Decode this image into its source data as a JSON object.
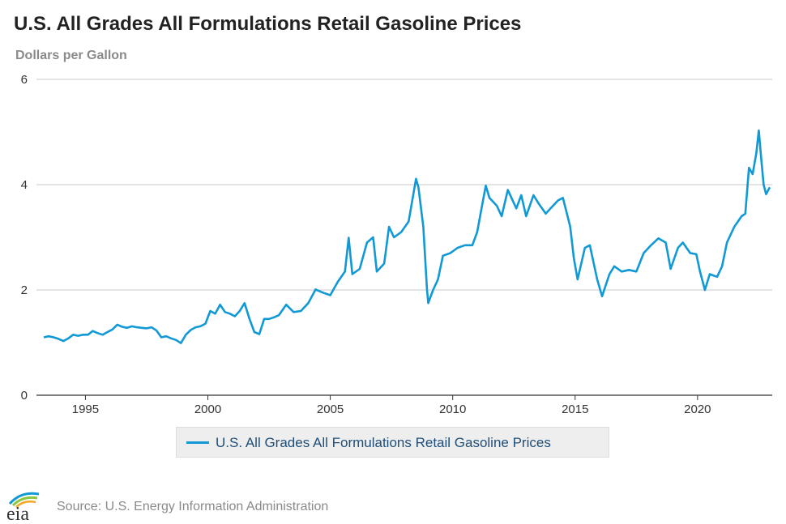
{
  "title": "U.S. All Grades All Formulations Retail Gasoline Prices",
  "unit_label": "Dollars per Gallon",
  "legend": {
    "label": "U.S. All Grades All Formulations Retail Gasoline Prices"
  },
  "footer": {
    "logo_text": "eia",
    "source": "Source: U.S. Energy Information Administration"
  },
  "colors": {
    "series": "#1199d6",
    "grid": "#c8c8c8",
    "axis": "#333333"
  },
  "chart_data": {
    "type": "line",
    "title": "U.S. All Grades All Formulations Retail Gasoline Prices",
    "ylabel": "Dollars per Gallon",
    "xlabel": "",
    "xlim": [
      1993.0,
      2023.05
    ],
    "ylim": [
      0,
      6
    ],
    "yticks": [
      0,
      2,
      4,
      6
    ],
    "xticks": [
      1995,
      2000,
      2005,
      2010,
      2015,
      2020
    ],
    "grid": "horizontal",
    "legend_position": "bottom",
    "series": [
      {
        "name": "U.S. All Grades All Formulations Retail Gasoline Prices",
        "x": [
          1993.3,
          1993.5,
          1993.7,
          1993.9,
          1994.1,
          1994.3,
          1994.5,
          1994.7,
          1994.9,
          1995.1,
          1995.3,
          1995.5,
          1995.7,
          1995.9,
          1996.1,
          1996.3,
          1996.5,
          1996.7,
          1996.9,
          1997.1,
          1997.3,
          1997.5,
          1997.7,
          1997.9,
          1998.1,
          1998.3,
          1998.5,
          1998.7,
          1998.9,
          1999.1,
          1999.3,
          1999.5,
          1999.7,
          1999.9,
          2000.1,
          2000.3,
          2000.5,
          2000.7,
          2000.9,
          2001.1,
          2001.3,
          2001.5,
          2001.7,
          2001.9,
          2002.1,
          2002.3,
          2002.5,
          2002.7,
          2002.9,
          2003.2,
          2003.5,
          2003.8,
          2004.1,
          2004.4,
          2004.7,
          2005.0,
          2005.3,
          2005.6,
          2005.75,
          2005.9,
          2006.2,
          2006.5,
          2006.75,
          2006.9,
          2007.2,
          2007.4,
          2007.6,
          2007.9,
          2008.2,
          2008.5,
          2008.6,
          2008.8,
          2008.95,
          2009.0,
          2009.2,
          2009.4,
          2009.6,
          2009.9,
          2010.2,
          2010.5,
          2010.8,
          2011.0,
          2011.2,
          2011.35,
          2011.5,
          2011.8,
          2012.0,
          2012.25,
          2012.4,
          2012.6,
          2012.8,
          2013.0,
          2013.3,
          2013.5,
          2013.8,
          2014.0,
          2014.3,
          2014.5,
          2014.8,
          2014.95,
          2015.1,
          2015.4,
          2015.6,
          2015.9,
          2016.1,
          2016.4,
          2016.6,
          2016.9,
          2017.2,
          2017.5,
          2017.8,
          2018.1,
          2018.4,
          2018.7,
          2018.9,
          2019.2,
          2019.4,
          2019.7,
          2019.95,
          2020.1,
          2020.3,
          2020.5,
          2020.8,
          2021.0,
          2021.2,
          2021.5,
          2021.8,
          2021.95,
          2022.1,
          2022.25,
          2022.4,
          2022.5,
          2022.6,
          2022.7,
          2022.8,
          2022.95
        ],
        "y": [
          1.1,
          1.12,
          1.1,
          1.07,
          1.03,
          1.08,
          1.15,
          1.13,
          1.15,
          1.15,
          1.22,
          1.18,
          1.15,
          1.2,
          1.25,
          1.34,
          1.3,
          1.28,
          1.31,
          1.29,
          1.28,
          1.27,
          1.29,
          1.23,
          1.1,
          1.12,
          1.08,
          1.05,
          0.99,
          1.15,
          1.24,
          1.29,
          1.31,
          1.36,
          1.6,
          1.55,
          1.72,
          1.58,
          1.55,
          1.5,
          1.6,
          1.75,
          1.45,
          1.2,
          1.16,
          1.45,
          1.45,
          1.48,
          1.52,
          1.72,
          1.58,
          1.6,
          1.75,
          2.01,
          1.95,
          1.9,
          2.15,
          2.35,
          2.99,
          2.3,
          2.4,
          2.9,
          3.0,
          2.35,
          2.5,
          3.2,
          3.0,
          3.1,
          3.3,
          4.11,
          3.95,
          3.2,
          2.0,
          1.75,
          2.0,
          2.2,
          2.65,
          2.7,
          2.8,
          2.85,
          2.85,
          3.1,
          3.6,
          3.98,
          3.75,
          3.6,
          3.4,
          3.9,
          3.75,
          3.55,
          3.8,
          3.4,
          3.8,
          3.65,
          3.45,
          3.55,
          3.7,
          3.75,
          3.2,
          2.6,
          2.2,
          2.8,
          2.85,
          2.2,
          1.88,
          2.3,
          2.45,
          2.35,
          2.38,
          2.35,
          2.7,
          2.85,
          2.98,
          2.9,
          2.4,
          2.8,
          2.9,
          2.7,
          2.68,
          2.35,
          2.0,
          2.3,
          2.25,
          2.45,
          2.9,
          3.2,
          3.4,
          3.45,
          4.32,
          4.2,
          4.6,
          5.03,
          4.5,
          4.0,
          3.82,
          3.95
        ]
      }
    ]
  }
}
